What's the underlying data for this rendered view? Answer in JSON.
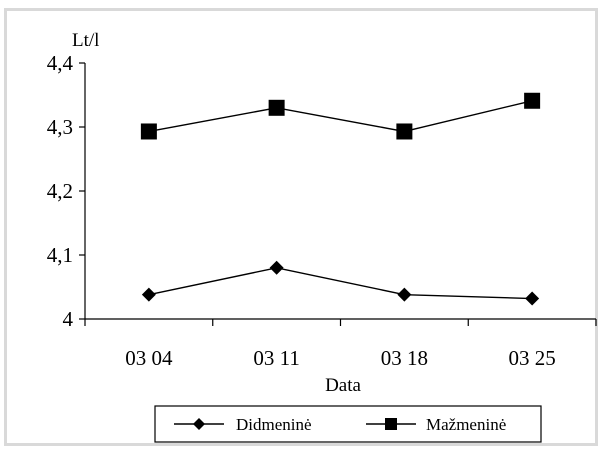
{
  "chart_data": {
    "type": "line",
    "categories": [
      "03 04",
      "03 11",
      "03 18",
      "03 25"
    ],
    "series": [
      {
        "name": "Didmeninė",
        "marker": "diamond",
        "values": [
          4.038,
          4.08,
          4.038,
          4.032
        ]
      },
      {
        "name": "Mažmeninė",
        "marker": "square",
        "values": [
          4.293,
          4.33,
          4.293,
          4.341
        ]
      }
    ],
    "ylabel": "Lt/l",
    "xlabel": "Data",
    "ylim": [
      4,
      4.4
    ],
    "yticks": [
      {
        "value": 4.0,
        "label": "4"
      },
      {
        "value": 4.1,
        "label": "4,1"
      },
      {
        "value": 4.2,
        "label": "4,2"
      },
      {
        "value": 4.3,
        "label": "4,3"
      },
      {
        "value": 4.4,
        "label": "4,4"
      }
    ],
    "grid": false,
    "legend_position": "bottom",
    "colors": {
      "line": "#000000",
      "frame": "#d9d9d9"
    }
  }
}
